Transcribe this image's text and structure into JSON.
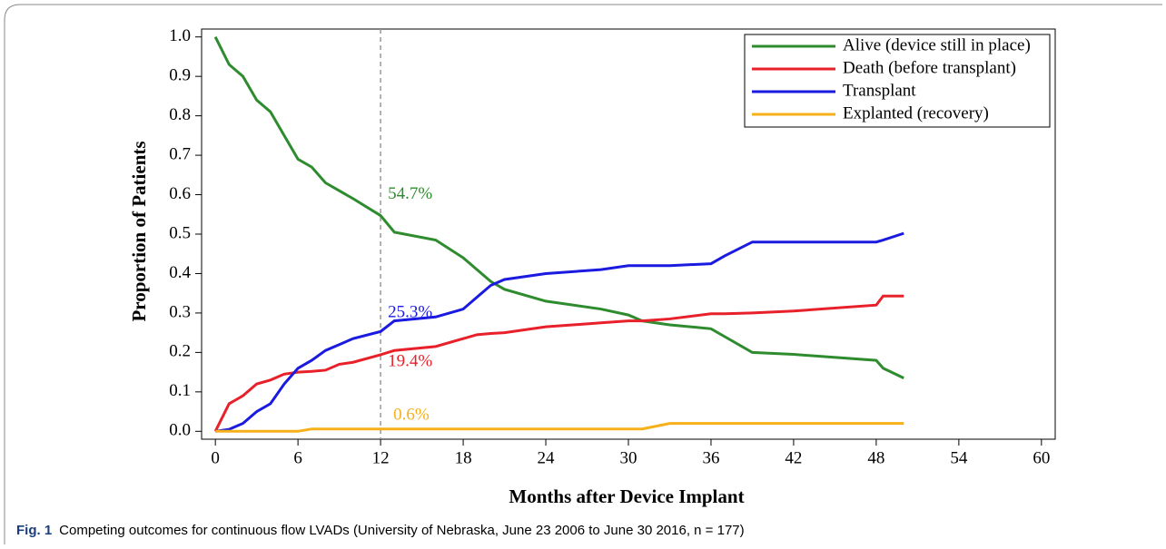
{
  "chart_data": {
    "type": "line",
    "xlabel": "Months after Device Implant",
    "ylabel": "Proportion of Patients",
    "caption_label": "Fig. 1",
    "caption": "Competing outcomes for continuous flow LVADs (University of Nebraska, June 23 2006 to June 30 2016, n = 177)",
    "x": [
      0,
      1,
      2,
      3,
      4,
      5,
      6,
      7,
      8,
      9,
      10,
      12,
      13,
      16,
      18,
      19,
      20,
      21,
      24,
      28,
      30,
      31,
      33,
      36,
      37,
      39,
      42,
      48,
      48.5,
      50
    ],
    "series": [
      {
        "name": "Alive (device still in place)",
        "color": "#2e8b2e",
        "values": [
          1.0,
          0.93,
          0.9,
          0.84,
          0.81,
          0.75,
          0.69,
          0.67,
          0.63,
          0.61,
          0.59,
          0.547,
          0.505,
          0.485,
          0.44,
          0.41,
          0.38,
          0.36,
          0.33,
          0.31,
          0.295,
          0.28,
          0.27,
          0.26,
          0.24,
          0.2,
          0.195,
          0.18,
          0.16,
          0.135
        ]
      },
      {
        "name": "Death (before transplant)",
        "color": "#e8202a",
        "values": [
          0,
          0.07,
          0.09,
          0.12,
          0.13,
          0.145,
          0.15,
          0.152,
          0.155,
          0.17,
          0.175,
          0.194,
          0.205,
          0.215,
          0.235,
          0.245,
          0.248,
          0.25,
          0.265,
          0.275,
          0.28,
          0.28,
          0.285,
          0.298,
          0.298,
          0.3,
          0.305,
          0.32,
          0.343,
          0.343
        ]
      },
      {
        "name": "Transplant",
        "color": "#1a1ae0",
        "values": [
          0,
          0.005,
          0.02,
          0.05,
          0.07,
          0.12,
          0.16,
          0.18,
          0.205,
          0.22,
          0.235,
          0.253,
          0.28,
          0.29,
          0.31,
          0.34,
          0.37,
          0.385,
          0.4,
          0.41,
          0.42,
          0.42,
          0.42,
          0.425,
          0.445,
          0.48,
          0.48,
          0.48,
          0.485,
          0.502
        ]
      },
      {
        "name": "Explanted (recovery)",
        "color": "#f5b01a",
        "values": [
          0,
          0,
          0,
          0,
          0,
          0,
          0,
          0.006,
          0.006,
          0.006,
          0.006,
          0.006,
          0.006,
          0.006,
          0.006,
          0.006,
          0.006,
          0.006,
          0.006,
          0.006,
          0.006,
          0.006,
          0.02,
          0.02,
          0.02,
          0.02,
          0.02,
          0.02,
          0.02,
          0.02
        ]
      }
    ],
    "annotations": [
      "54.7%",
      "19.4%",
      "25.3%",
      "0.6%"
    ],
    "vline": 12,
    "xlim": [
      -1,
      61
    ],
    "xticks": [
      0,
      6,
      12,
      18,
      24,
      30,
      36,
      42,
      48,
      54,
      60
    ],
    "ylim": [
      -0.02,
      1.02
    ],
    "yticks": [
      {
        "value": 0,
        "label": "0.0"
      },
      0.1,
      0.2,
      0.3,
      0.4,
      0.5,
      0.6,
      0.7,
      0.8,
      0.9,
      {
        "value": 1,
        "label": "1.0"
      }
    ],
    "legend": "top-right"
  }
}
